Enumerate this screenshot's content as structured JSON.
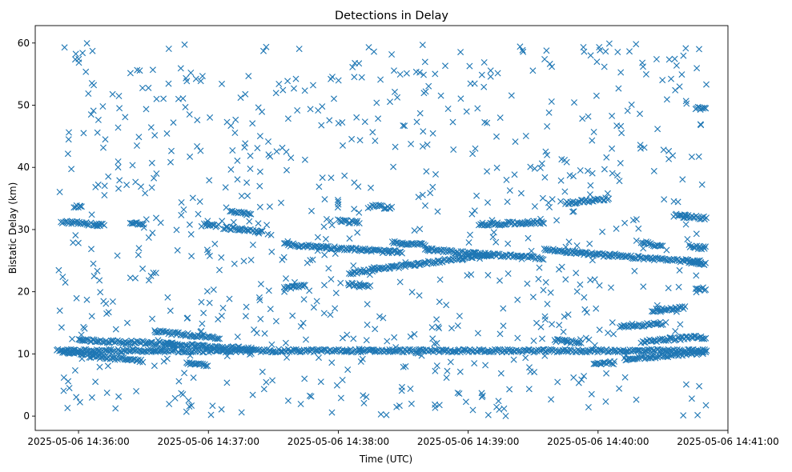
{
  "chart_data": {
    "type": "scatter",
    "title": "Detections in Delay",
    "xlabel": "Time (UTC)",
    "ylabel": "Bistatic Delay (km)",
    "marker": "x",
    "color": "#1f77b4",
    "xlim": [
      "2025-05-06T14:35:40",
      "2025-05-06T14:41:00"
    ],
    "ylim": [
      -2.3,
      62.8
    ],
    "xticks": [
      "2025-05-06 14:36:00",
      "2025-05-06 14:37:00",
      "2025-05-06 14:38:00",
      "2025-05-06 14:39:00",
      "2025-05-06 14:40:00",
      "2025-05-06 14:41:00"
    ],
    "yticks": [
      0,
      10,
      20,
      30,
      40,
      50,
      60
    ],
    "grid": false,
    "legend": "none",
    "track_start": "2025-05-06T14:35:50",
    "track_end": "2025-05-06T14:40:50",
    "tracks": [
      {
        "start": "2025-05-06T14:35:50",
        "end": "2025-05-06T14:40:50",
        "y_start": 10.5,
        "y_end": 10.5
      },
      {
        "start": "2025-05-06T14:35:52",
        "end": "2025-05-06T14:36:10",
        "y_start": 10.4,
        "y_end": 9.8
      },
      {
        "start": "2025-05-06T14:36:00",
        "end": "2025-05-06T14:36:45",
        "y_start": 12.2,
        "y_end": 11.6
      },
      {
        "start": "2025-05-06T14:36:05",
        "end": "2025-05-06T14:36:30",
        "y_start": 9.6,
        "y_end": 8.9
      },
      {
        "start": "2025-05-06T14:36:35",
        "end": "2025-05-06T14:37:05",
        "y_start": 13.6,
        "y_end": 12.6
      },
      {
        "start": "2025-05-06T14:36:40",
        "end": "2025-05-06T14:37:20",
        "y_start": 11.6,
        "y_end": 10.8
      },
      {
        "start": "2025-05-06T14:36:50",
        "end": "2025-05-06T14:37:00",
        "y_start": 8.6,
        "y_end": 8.2
      },
      {
        "start": "2025-05-06T14:35:52",
        "end": "2025-05-06T14:36:12",
        "y_start": 31.3,
        "y_end": 30.7
      },
      {
        "start": "2025-05-06T14:35:58",
        "end": "2025-05-06T14:36:02",
        "y_start": 33.8,
        "y_end": 33.7
      },
      {
        "start": "2025-05-06T14:36:24",
        "end": "2025-05-06T14:36:30",
        "y_start": 31.0,
        "y_end": 30.9
      },
      {
        "start": "2025-05-06T14:36:58",
        "end": "2025-05-06T14:37:05",
        "y_start": 30.8,
        "y_end": 30.5
      },
      {
        "start": "2025-05-06T14:37:07",
        "end": "2025-05-06T14:37:25",
        "y_start": 30.3,
        "y_end": 29.7
      },
      {
        "start": "2025-05-06T14:37:10",
        "end": "2025-05-06T14:37:20",
        "y_start": 32.8,
        "y_end": 32.5
      },
      {
        "start": "2025-05-06T14:37:35",
        "end": "2025-05-06T14:37:45",
        "y_start": 20.5,
        "y_end": 21.2
      },
      {
        "start": "2025-05-06T14:37:35",
        "end": "2025-05-06T14:38:30",
        "y_start": 27.6,
        "y_end": 26.3
      },
      {
        "start": "2025-05-06T14:38:00",
        "end": "2025-05-06T14:38:10",
        "y_start": 31.4,
        "y_end": 31.1
      },
      {
        "start": "2025-05-06T14:38:05",
        "end": "2025-05-06T14:38:15",
        "y_start": 21.2,
        "y_end": 21.0
      },
      {
        "start": "2025-05-06T14:38:05",
        "end": "2025-05-06T14:39:10",
        "y_start": 23.0,
        "y_end": 26.0
      },
      {
        "start": "2025-05-06T14:38:15",
        "end": "2025-05-06T14:38:25",
        "y_start": 33.8,
        "y_end": 33.5
      },
      {
        "start": "2025-05-06T14:38:25",
        "end": "2025-05-06T14:38:40",
        "y_start": 27.9,
        "y_end": 27.6
      },
      {
        "start": "2025-05-06T14:38:40",
        "end": "2025-05-06T14:39:00",
        "y_start": 26.8,
        "y_end": 26.2
      },
      {
        "start": "2025-05-06T14:39:00",
        "end": "2025-05-06T14:39:35",
        "y_start": 26.2,
        "y_end": 25.4
      },
      {
        "start": "2025-05-06T14:39:05",
        "end": "2025-05-06T14:39:35",
        "y_start": 30.8,
        "y_end": 31.2
      },
      {
        "start": "2025-05-06T14:39:35",
        "end": "2025-05-06T14:40:05",
        "y_start": 26.8,
        "y_end": 25.8
      },
      {
        "start": "2025-05-06T14:39:45",
        "end": "2025-05-06T14:40:05",
        "y_start": 34.2,
        "y_end": 35.0
      },
      {
        "start": "2025-05-06T14:39:40",
        "end": "2025-05-06T14:39:52",
        "y_start": 12.2,
        "y_end": 11.8
      },
      {
        "start": "2025-05-06T14:39:58",
        "end": "2025-05-06T14:40:08",
        "y_start": 8.4,
        "y_end": 8.6
      },
      {
        "start": "2025-05-06T14:40:10",
        "end": "2025-05-06T14:40:30",
        "y_start": 14.4,
        "y_end": 14.9
      },
      {
        "start": "2025-05-06T14:40:05",
        "end": "2025-05-06T14:40:48",
        "y_start": 25.8,
        "y_end": 24.8
      },
      {
        "start": "2025-05-06T14:40:20",
        "end": "2025-05-06T14:40:30",
        "y_start": 28.0,
        "y_end": 27.2
      },
      {
        "start": "2025-05-06T14:40:20",
        "end": "2025-05-06T14:40:42",
        "y_start": 12.0,
        "y_end": 12.6
      },
      {
        "start": "2025-05-06T14:40:25",
        "end": "2025-05-06T14:40:40",
        "y_start": 17.0,
        "y_end": 17.4
      },
      {
        "start": "2025-05-06T14:40:12",
        "end": "2025-05-06T14:40:50",
        "y_start": 9.2,
        "y_end": 10.2
      },
      {
        "start": "2025-05-06T14:40:35",
        "end": "2025-05-06T14:40:50",
        "y_start": 32.3,
        "y_end": 31.8
      },
      {
        "start": "2025-05-06T14:40:42",
        "end": "2025-05-06T14:40:50",
        "y_start": 24.6,
        "y_end": 24.4
      },
      {
        "start": "2025-05-06T14:40:42",
        "end": "2025-05-06T14:40:50",
        "y_start": 27.3,
        "y_end": 27.0
      },
      {
        "start": "2025-05-06T14:40:42",
        "end": "2025-05-06T14:40:50",
        "y_start": 12.8,
        "y_end": 12.6
      },
      {
        "start": "2025-05-06T14:40:45",
        "end": "2025-05-06T14:40:50",
        "y_start": 20.6,
        "y_end": 20.4
      },
      {
        "start": "2025-05-06T14:40:45",
        "end": "2025-05-06T14:40:50",
        "y_start": 49.5,
        "y_end": 49.5
      }
    ],
    "clutter_count": 820,
    "clutter_y_range": [
      0,
      60
    ]
  }
}
